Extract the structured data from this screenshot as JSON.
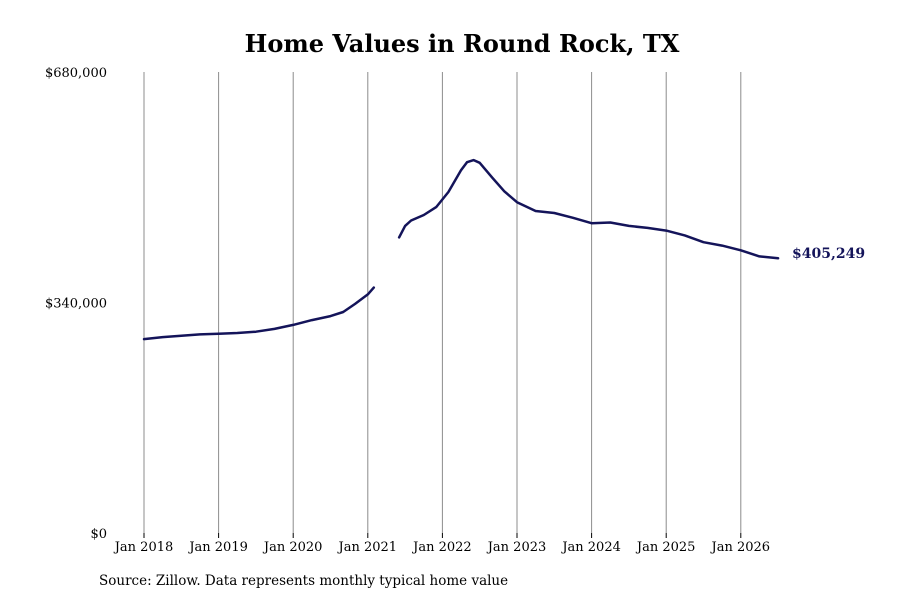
{
  "chart_data": {
    "type": "line",
    "title": "Home Values in Round Rock, TX",
    "xlabel": "",
    "ylabel": "",
    "ylim": [
      0,
      680000
    ],
    "y_ticks": [
      {
        "value": 0,
        "label": "$0"
      },
      {
        "value": 340000,
        "label": "$340,000"
      },
      {
        "value": 680000,
        "label": "$680,000"
      }
    ],
    "x_ticks": [
      {
        "value": 2018.0,
        "label": "Jan 2018"
      },
      {
        "value": 2019.0,
        "label": "Jan 2019"
      },
      {
        "value": 2020.0,
        "label": "Jan 2020"
      },
      {
        "value": 2021.0,
        "label": "Jan 2021"
      },
      {
        "value": 2022.0,
        "label": "Jan 2022"
      },
      {
        "value": 2023.0,
        "label": "Jan 2023"
      },
      {
        "value": 2024.0,
        "label": "Jan 2024"
      },
      {
        "value": 2025.0,
        "label": "Jan 2025"
      },
      {
        "value": 2026.0,
        "label": "Jan 2026"
      }
    ],
    "xlim": [
      2018.0,
      2026.5
    ],
    "grid": "vertical",
    "line_color": "#14145a",
    "end_label": "$405,249",
    "segments": [
      {
        "points": [
          [
            2018.0,
            286000
          ],
          [
            2018.25,
            289000
          ],
          [
            2018.5,
            291000
          ],
          [
            2018.75,
            293000
          ],
          [
            2019.0,
            294000
          ],
          [
            2019.25,
            295000
          ],
          [
            2019.5,
            297000
          ],
          [
            2019.75,
            301000
          ],
          [
            2020.0,
            307000
          ],
          [
            2020.25,
            314000
          ],
          [
            2020.5,
            320000
          ],
          [
            2020.67,
            326000
          ],
          [
            2020.83,
            338000
          ],
          [
            2021.0,
            352000
          ],
          [
            2021.08,
            362000
          ]
        ]
      },
      {
        "points": [
          [
            2021.42,
            436000
          ],
          [
            2021.5,
            453000
          ],
          [
            2021.58,
            461000
          ],
          [
            2021.75,
            469000
          ],
          [
            2021.92,
            481000
          ],
          [
            2022.08,
            503000
          ],
          [
            2022.25,
            535000
          ],
          [
            2022.33,
            547000
          ],
          [
            2022.42,
            550000
          ],
          [
            2022.5,
            546000
          ],
          [
            2022.67,
            524000
          ],
          [
            2022.83,
            504000
          ],
          [
            2023.0,
            488000
          ],
          [
            2023.25,
            475000
          ],
          [
            2023.5,
            472000
          ],
          [
            2023.75,
            465000
          ],
          [
            2024.0,
            457000
          ],
          [
            2024.25,
            458000
          ],
          [
            2024.5,
            453000
          ],
          [
            2024.75,
            450000
          ],
          [
            2025.0,
            446000
          ],
          [
            2025.25,
            439000
          ],
          [
            2025.5,
            429000
          ],
          [
            2025.75,
            424000
          ],
          [
            2026.0,
            417000
          ],
          [
            2026.25,
            408000
          ],
          [
            2026.5,
            405249
          ]
        ]
      }
    ]
  },
  "footer": {
    "source": "Source: Zillow. Data represents monthly typical home value"
  }
}
